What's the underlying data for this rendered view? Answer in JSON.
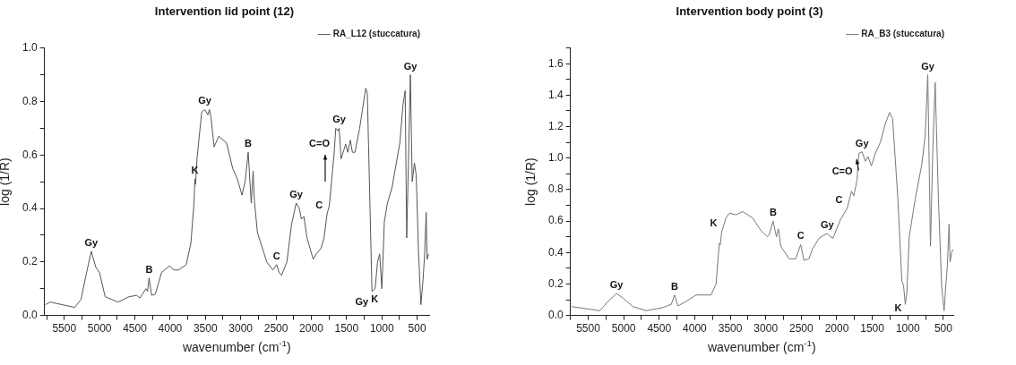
{
  "chart_data": [
    {
      "type": "line",
      "title": "Intervention lid point (12)",
      "xlabel": "wavenumber (cm$^{-1}$)",
      "ylabel": "log (1/R)",
      "legend": "top right",
      "marker": "none",
      "xlim": [
        5780,
        330
      ],
      "ylim": [
        0,
        1.0
      ],
      "xticks": [
        {
          "value": 5750,
          "label": null
        },
        5500,
        {
          "value": 5250,
          "label": null
        },
        5000,
        {
          "value": 4750,
          "label": null
        },
        4500,
        {
          "value": 4250,
          "label": null
        },
        4000,
        {
          "value": 3750,
          "label": null
        },
        3500,
        {
          "value": 3250,
          "label": null
        },
        3000,
        {
          "value": 2750,
          "label": null
        },
        2500,
        {
          "value": 2250,
          "label": null
        },
        2000,
        {
          "value": 1750,
          "label": null
        },
        1500,
        {
          "value": 1250,
          "label": null
        },
        1000,
        {
          "value": 750,
          "label": null
        },
        500
      ],
      "yticks": [
        {
          "value": 0,
          "label": "0.0"
        },
        {
          "value": 0.1,
          "label": null
        },
        0.2,
        {
          "value": 0.3,
          "label": null
        },
        0.4,
        {
          "value": 0.5,
          "label": null
        },
        0.6,
        {
          "value": 0.7,
          "label": null
        },
        0.8,
        {
          "value": 0.9,
          "label": null
        },
        {
          "value": 1.0,
          "label": "1.0"
        }
      ],
      "series": [
        {
          "name": "RA_L12 (stuccatura)",
          "color": "#555555",
          "x": [
            5767,
            5701,
            5351,
            5263,
            5184,
            5118,
            5053,
            5000,
            4921,
            4737,
            4583,
            4474,
            4430,
            4342,
            4320,
            4298,
            4263,
            4210,
            4122,
            4013,
            3947,
            3881,
            3772,
            3706,
            3662,
            3649,
            3640,
            3618,
            3553,
            3509,
            3465,
            3443,
            3421,
            3377,
            3311,
            3201,
            3114,
            3048,
            2982,
            2938,
            2894,
            2851,
            2824,
            2807,
            2763,
            2631,
            2544,
            2491,
            2456,
            2421,
            2346,
            2280,
            2214,
            2170,
            2140,
            2105,
            2061,
            1973,
            1929,
            1863,
            1819,
            1776,
            1745,
            1710,
            1675,
            1653,
            1622,
            1605,
            1578,
            1513,
            1483,
            1447,
            1417,
            1381,
            1315,
            1228,
            1206,
            1140,
            1096,
            1061,
            1031,
            1000,
            965,
            921,
            855,
            745,
            702,
            670,
            648,
            622,
            596,
            570,
            539,
            513,
            482,
            447,
            416,
            394,
            372,
            359,
            338
          ],
          "values": [
            0.04,
            0.05,
            0.03,
            0.06,
            0.16,
            0.24,
            0.18,
            0.16,
            0.07,
            0.05,
            0.07,
            0.075,
            0.065,
            0.1,
            0.09,
            0.14,
            0.075,
            0.08,
            0.16,
            0.185,
            0.17,
            0.17,
            0.19,
            0.27,
            0.42,
            0.51,
            0.49,
            0.59,
            0.76,
            0.77,
            0.75,
            0.77,
            0.74,
            0.63,
            0.67,
            0.645,
            0.55,
            0.51,
            0.45,
            0.5,
            0.61,
            0.42,
            0.54,
            0.43,
            0.31,
            0.2,
            0.17,
            0.19,
            0.16,
            0.15,
            0.2,
            0.34,
            0.42,
            0.4,
            0.36,
            0.37,
            0.29,
            0.21,
            0.23,
            0.25,
            0.29,
            0.38,
            0.41,
            0.51,
            0.61,
            0.7,
            0.69,
            0.7,
            0.585,
            0.64,
            0.61,
            0.655,
            0.61,
            0.61,
            0.7,
            0.85,
            0.83,
            0.09,
            0.1,
            0.2,
            0.23,
            0.1,
            0.35,
            0.42,
            0.48,
            0.645,
            0.785,
            0.84,
            0.29,
            0.59,
            0.9,
            0.5,
            0.57,
            0.525,
            0.245,
            0.04,
            0.135,
            0.23,
            0.385,
            0.21,
            0.23
          ]
        }
      ],
      "annotations": [
        {
          "text": "Gy",
          "x": 5118,
          "y": 0.24
        },
        {
          "text": "B",
          "x": 4298,
          "y": 0.14
        },
        {
          "text": "K",
          "x": 3649,
          "y": 0.51
        },
        {
          "text": "Gy",
          "x": 3509,
          "y": 0.77
        },
        {
          "text": "B",
          "x": 2894,
          "y": 0.61
        },
        {
          "text": "C",
          "x": 2491,
          "y": 0.19
        },
        {
          "text": "Gy",
          "x": 2214,
          "y": 0.42
        },
        {
          "text": "C",
          "x": 1776,
          "y": 0.38
        },
        {
          "text": "C=O",
          "x": 1675,
          "y": 0.61
        },
        {
          "text": "Gy",
          "x": 1605,
          "y": 0.7
        },
        {
          "text": "Gy",
          "x": 1140,
          "y": 0.09
        },
        {
          "text": "K",
          "x": 1000,
          "y": 0.1
        },
        {
          "text": "Gy",
          "x": 596,
          "y": 0.9
        }
      ]
    },
    {
      "type": "line",
      "title": "Intervention body point (3)",
      "xlabel": "wavenumber (cm$^{-1}$)",
      "ylabel": "log (1/R)",
      "legend": "top right",
      "marker": "none",
      "xlim": [
        5750,
        360
      ],
      "ylim": [
        0,
        1.7
      ],
      "xticks": [
        {
          "value": 5750,
          "label": null
        },
        5500,
        {
          "value": 5250,
          "label": null
        },
        5000,
        {
          "value": 4750,
          "label": null
        },
        4500,
        {
          "value": 4250,
          "label": null
        },
        4000,
        {
          "value": 3750,
          "label": null
        },
        3500,
        {
          "value": 3250,
          "label": null
        },
        3000,
        {
          "value": 2750,
          "label": null
        },
        2500,
        {
          "value": 2250,
          "label": null
        },
        2000,
        {
          "value": 1750,
          "label": null
        },
        1500,
        {
          "value": 1250,
          "label": null
        },
        1000,
        {
          "value": 750,
          "label": null
        },
        500
      ],
      "yticks": [
        {
          "value": 0,
          "label": "0.0"
        },
        {
          "value": 0.1,
          "label": null
        },
        0.2,
        {
          "value": 0.3,
          "label": null
        },
        0.4,
        {
          "value": 0.5,
          "label": null
        },
        0.6,
        {
          "value": 0.7,
          "label": null
        },
        0.8,
        {
          "value": 0.9,
          "label": null
        },
        {
          "value": 1.0,
          "label": "1.0"
        },
        {
          "value": 1.1,
          "label": null
        },
        1.2,
        {
          "value": 1.3,
          "label": null
        },
        1.4,
        {
          "value": 1.5,
          "label": null
        },
        1.6,
        {
          "value": 1.7,
          "label": null
        }
      ],
      "series": [
        {
          "name": "RA_B3 (stuccatura)",
          "color": "#777777",
          "x": [
            5733,
            5336,
            5220,
            5102,
            5009,
            4869,
            4681,
            4449,
            4331,
            4284,
            4238,
            4120,
            3980,
            3770,
            3700,
            3654,
            3640,
            3621,
            3560,
            3513,
            3420,
            3327,
            3186,
            3069,
            2976,
            2953,
            2897,
            2850,
            2822,
            2789,
            2672,
            2578,
            2508,
            2462,
            2392,
            2345,
            2252,
            2182,
            2135,
            2111,
            2055,
            1947,
            1855,
            1793,
            1761,
            1715,
            1691,
            1644,
            1597,
            1560,
            1513,
            1457,
            1387,
            1316,
            1256,
            1214,
            1140,
            1084,
            1060,
            1036,
            1014,
            980,
            896,
            803,
            756,
            719,
            681,
            649,
            615,
            569,
            523,
            489,
            467,
            443,
            419,
            405,
            383,
            363
          ],
          "values": [
            0.056,
            0.03,
            0.09,
            0.14,
            0.11,
            0.056,
            0.03,
            0.05,
            0.07,
            0.13,
            0.06,
            0.09,
            0.13,
            0.13,
            0.2,
            0.46,
            0.45,
            0.53,
            0.62,
            0.65,
            0.64,
            0.66,
            0.62,
            0.54,
            0.5,
            0.51,
            0.6,
            0.5,
            0.55,
            0.44,
            0.36,
            0.36,
            0.45,
            0.35,
            0.36,
            0.42,
            0.49,
            0.51,
            0.52,
            0.51,
            0.49,
            0.61,
            0.68,
            0.79,
            0.76,
            0.86,
            1.03,
            1.04,
            0.98,
            1.01,
            0.95,
            1.03,
            1.1,
            1.22,
            1.29,
            1.25,
            0.74,
            0.22,
            0.19,
            0.07,
            0.14,
            0.5,
            0.74,
            0.96,
            1.14,
            1.53,
            0.44,
            1.04,
            1.48,
            0.74,
            0.18,
            0.03,
            0.18,
            0.32,
            0.58,
            0.34,
            0.4,
            0.42
          ]
        }
      ],
      "annotations": [
        {
          "text": "Gy",
          "x": 5102,
          "y": 0.14
        },
        {
          "text": "B",
          "x": 4284,
          "y": 0.13
        },
        {
          "text": "K",
          "x": 3621,
          "y": 0.53
        },
        {
          "text": "B",
          "x": 2897,
          "y": 0.6
        },
        {
          "text": "C",
          "x": 2508,
          "y": 0.45
        },
        {
          "text": "Gy",
          "x": 2135,
          "y": 0.52
        },
        {
          "text": "C",
          "x": 1855,
          "y": 0.68
        },
        {
          "text": "C=O",
          "x": 1715,
          "y": 0.86
        },
        {
          "text": "Gy",
          "x": 1644,
          "y": 1.04
        },
        {
          "text": "K",
          "x": 1036,
          "y": 0.07
        },
        {
          "text": "Gy",
          "x": 719,
          "y": 1.53
        }
      ]
    }
  ]
}
